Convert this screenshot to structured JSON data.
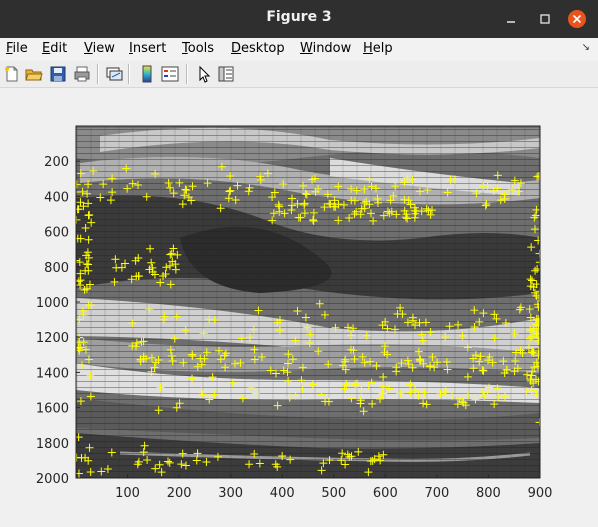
{
  "window": {
    "title": "Figure 3"
  },
  "menu": {
    "items": [
      {
        "label": "File",
        "key": "F",
        "rest": "ile"
      },
      {
        "label": "Edit",
        "key": "E",
        "rest": "dit"
      },
      {
        "label": "View",
        "key": "V",
        "rest": "iew"
      },
      {
        "label": "Insert",
        "key": "I",
        "rest": "nsert"
      },
      {
        "label": "Tools",
        "key": "T",
        "rest": "ools"
      },
      {
        "label": "Desktop",
        "key": "D",
        "rest": "esktop"
      },
      {
        "label": "Window",
        "key": "W",
        "rest": "indow"
      },
      {
        "label": "Help",
        "key": "H",
        "rest": "elp"
      }
    ]
  },
  "toolbar": {
    "icons": [
      "new-figure-icon",
      "open-file-icon",
      "save-icon",
      "print-icon",
      "link-plot-icon",
      "colorbar-icon",
      "legend-icon",
      "edit-plot-pointer-icon",
      "property-inspector-icon"
    ]
  },
  "axes": {
    "xticks": [
      "100",
      "200",
      "300",
      "400",
      "500",
      "600",
      "700",
      "800",
      "900"
    ],
    "yticks": [
      "200",
      "400",
      "600",
      "800",
      "1000",
      "1200",
      "1400",
      "1600",
      "1800",
      "2000"
    ],
    "xlim": [
      0,
      900
    ],
    "ylim": [
      0,
      2000
    ],
    "marker_color": "#ffff00",
    "marker": "+"
  }
}
